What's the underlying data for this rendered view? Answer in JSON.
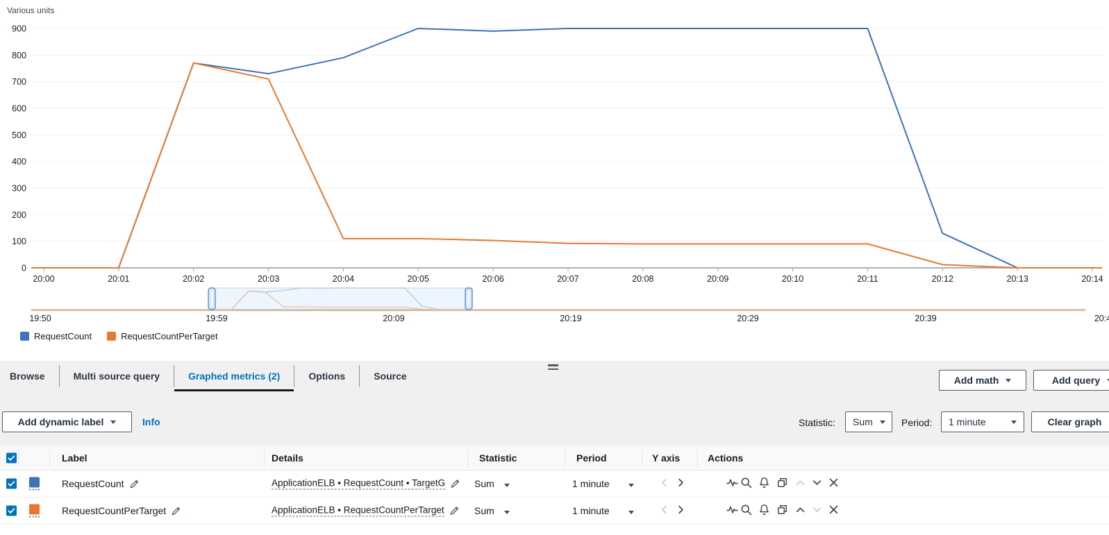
{
  "chart": {
    "units_label": "Various units"
  },
  "chart_data": {
    "type": "line",
    "title": "Various units",
    "x_labels": [
      "20:00",
      "20:01",
      "20:02",
      "20:03",
      "20:04",
      "20:05",
      "20:06",
      "20:07",
      "20:08",
      "20:09",
      "20:10",
      "20:11",
      "20:12",
      "20:13",
      "20:14"
    ],
    "series": [
      {
        "name": "RequestCount",
        "color": "#3c73b9",
        "values": [
          0,
          0,
          770,
          730,
          790,
          900,
          890,
          900,
          900,
          900,
          900,
          900,
          130,
          0,
          0
        ]
      },
      {
        "name": "RequestCountPerTarget",
        "color": "#e8782d",
        "values": [
          0,
          0,
          770,
          710,
          110,
          110,
          103,
          92,
          90,
          90,
          90,
          90,
          12,
          0,
          0
        ]
      }
    ],
    "ylim": [
      0,
      900
    ],
    "yticks": [
      0,
      100,
      200,
      300,
      400,
      500,
      600,
      700,
      800,
      900
    ],
    "grid": true,
    "legend_position": "bottom-left",
    "overview": {
      "axis_labels": [
        "19:50",
        "19:59",
        "20:09",
        "20:19",
        "20:29",
        "20:39",
        "20:4"
      ],
      "selection": [
        "19:59",
        "20:14"
      ]
    }
  },
  "tabs": [
    {
      "label": "Browse",
      "active": false
    },
    {
      "label": "Multi source query",
      "active": false
    },
    {
      "label": "Graphed metrics (2)",
      "active": true
    },
    {
      "label": "Options",
      "active": false
    },
    {
      "label": "Source",
      "active": false
    }
  ],
  "header_buttons": {
    "add_math": "Add math",
    "add_query": "Add query"
  },
  "toolbar": {
    "add_dynamic_label": "Add dynamic label",
    "info": "Info",
    "statistic_label": "Statistic:",
    "statistic_value": "Sum",
    "period_label": "Period:",
    "period_value": "1 minute",
    "clear_graph": "Clear graph"
  },
  "table": {
    "columns": [
      "Label",
      "Details",
      "Statistic",
      "Period",
      "Y axis",
      "Actions"
    ],
    "rows": [
      {
        "checked": true,
        "color": "#3c73b9",
        "label": "RequestCount",
        "details": "ApplicationELB • RequestCount • TargetG",
        "statistic": "Sum",
        "period": "1 minute",
        "move_up_disabled": true,
        "move_down_disabled": false
      },
      {
        "checked": true,
        "color": "#e8782d",
        "label": "RequestCountPerTarget",
        "details": "ApplicationELB • RequestCountPerTarget",
        "statistic": "Sum",
        "period": "1 minute",
        "move_up_disabled": false,
        "move_down_disabled": true
      }
    ]
  }
}
